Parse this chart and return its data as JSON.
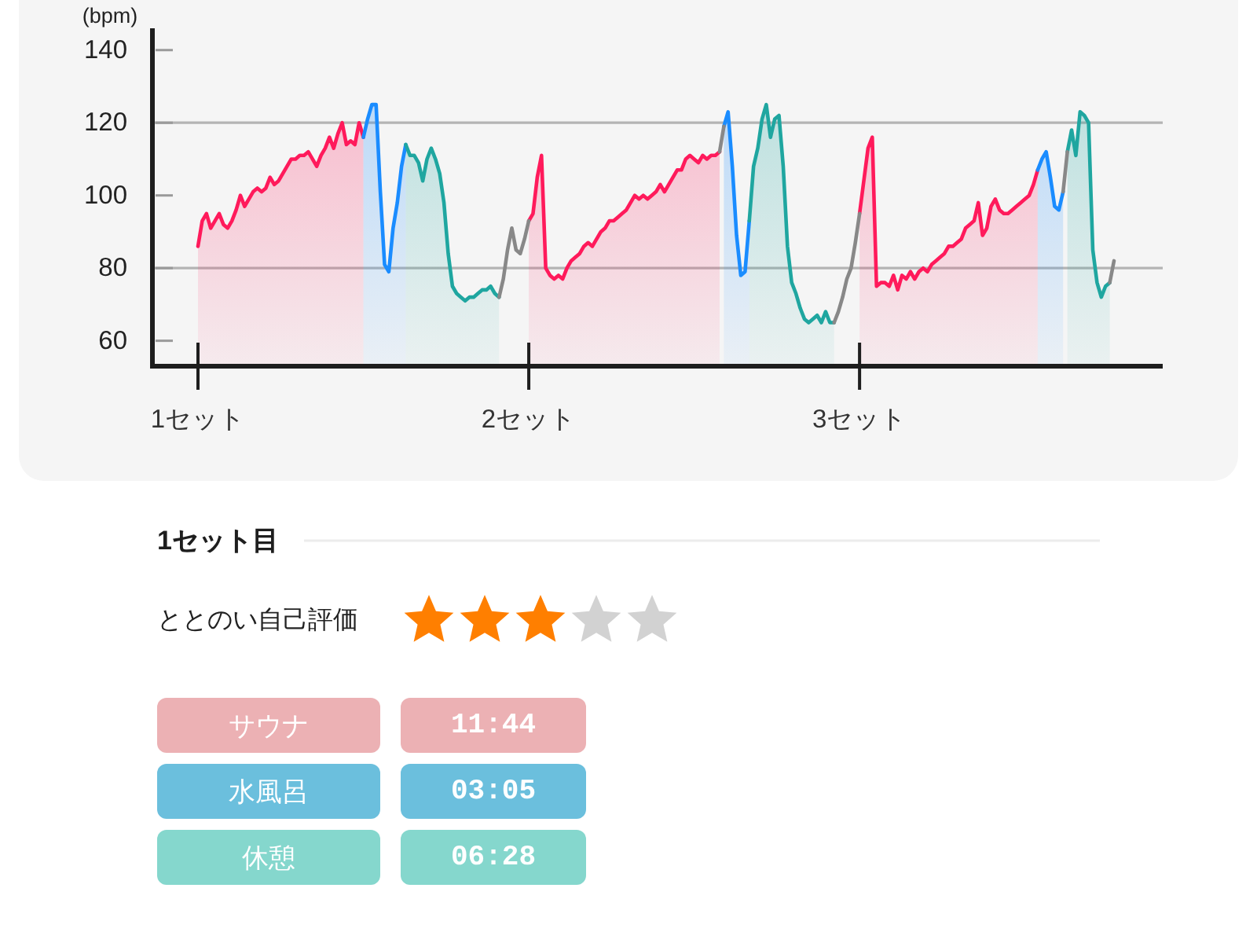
{
  "chart_data": [
    {
      "type": "area",
      "ylabel": "(bpm)",
      "ylim": [
        53,
        146
      ],
      "yticks": [
        60,
        80,
        100,
        120,
        140
      ],
      "categories": [
        "1セット",
        null,
        null,
        null,
        null,
        null,
        null,
        null,
        null,
        null,
        null,
        null,
        null,
        null,
        null,
        null,
        null,
        null,
        null,
        null,
        null,
        null,
        null,
        null,
        null,
        null,
        null,
        null,
        null,
        null,
        null,
        null,
        null,
        null,
        null,
        null,
        null,
        null,
        null,
        null,
        null,
        null,
        null,
        null,
        null,
        null,
        null,
        null,
        null,
        null,
        null,
        null,
        null,
        null,
        null,
        null,
        null,
        null,
        null,
        null,
        null,
        null,
        null,
        null,
        null,
        null,
        null,
        null,
        null,
        null,
        null,
        null,
        null,
        null,
        null,
        null,
        null,
        null,
        "2セット",
        null,
        null,
        null,
        null,
        null,
        null,
        null,
        null,
        null,
        null,
        null,
        null,
        null,
        null,
        null,
        null,
        null,
        null,
        null,
        null,
        null,
        null,
        null,
        null,
        null,
        null,
        null,
        null,
        null,
        null,
        null,
        null,
        null,
        null,
        null,
        null,
        null,
        null,
        null,
        null,
        null,
        null,
        null,
        null,
        null,
        null,
        null,
        null,
        null,
        null,
        null,
        null,
        null,
        null,
        null,
        null,
        null,
        null,
        null,
        null,
        null,
        null,
        null,
        null,
        null,
        null,
        null,
        null,
        null,
        null,
        null,
        null,
        null,
        null,
        null,
        null,
        null,
        "3セット",
        null,
        null,
        null,
        null,
        null,
        null,
        null,
        null,
        null,
        null,
        null,
        null,
        null,
        null,
        null,
        null,
        null,
        null,
        null,
        null,
        null,
        null,
        null,
        null,
        null,
        null,
        null,
        null,
        null,
        null,
        null,
        null,
        null,
        null,
        null,
        null,
        null,
        null,
        null,
        null,
        null,
        null,
        null,
        null,
        null,
        null,
        null,
        null,
        null,
        null,
        null,
        null,
        null,
        null,
        null,
        null,
        null,
        null,
        null,
        null
      ],
      "ref_lines": [
        {
          "axis": "y",
          "value": 80,
          "color": "#b4b4b4"
        },
        {
          "axis": "y",
          "value": 120,
          "color": "#b4b4b4"
        }
      ],
      "series": [
        {
          "type": "area",
          "color": "#ff1a5b",
          "values": [
            86,
            93,
            95,
            91,
            93,
            95,
            92,
            91,
            93,
            96,
            100,
            97,
            99,
            101,
            102,
            101,
            102,
            105,
            103,
            104,
            106,
            108,
            110,
            110,
            111,
            111,
            112,
            110,
            108,
            111,
            113,
            116,
            113,
            117,
            120,
            114,
            115,
            114,
            120,
            116,
            null,
            null,
            null,
            null,
            null,
            null,
            null,
            null,
            null,
            null,
            null,
            null,
            null,
            null,
            null,
            null,
            null,
            null,
            null,
            null,
            null,
            null,
            null,
            null,
            null,
            null,
            null,
            null,
            null,
            null,
            null,
            null,
            null,
            null,
            null,
            null,
            null,
            null,
            93,
            95,
            105,
            111,
            80,
            78,
            77,
            78,
            77,
            80,
            82,
            83,
            84,
            86,
            87,
            86,
            88,
            90,
            91,
            93,
            93,
            94,
            95,
            96,
            98,
            100,
            99,
            100,
            99,
            100,
            101,
            103,
            101,
            103,
            105,
            107,
            107,
            110,
            111,
            110,
            109,
            111,
            110,
            111,
            111,
            112,
            null,
            null,
            null,
            null,
            null,
            null,
            null,
            null,
            null,
            null,
            null,
            null,
            null,
            null,
            null,
            null,
            null,
            null,
            null,
            null,
            null,
            null,
            null,
            null,
            null,
            null,
            null,
            null,
            null,
            null,
            null,
            null,
            95,
            104,
            113,
            116,
            75,
            76,
            76,
            75,
            78,
            74,
            78,
            77,
            79,
            77,
            79,
            80,
            79,
            81,
            82,
            83,
            84,
            86,
            86,
            87,
            88,
            91,
            92,
            93,
            98,
            89,
            91,
            97,
            99,
            96,
            95,
            95,
            96,
            97,
            98,
            99,
            100,
            103,
            107,
            null,
            null,
            null,
            null,
            null,
            null,
            null,
            null,
            null,
            null,
            null,
            null,
            null,
            null,
            null,
            null,
            null,
            null
          ]
        },
        {
          "type": "area",
          "color": "#1a8cff",
          "values": [
            null,
            null,
            null,
            null,
            null,
            null,
            null,
            null,
            null,
            null,
            null,
            null,
            null,
            null,
            null,
            null,
            null,
            null,
            null,
            null,
            null,
            null,
            null,
            null,
            null,
            null,
            null,
            null,
            null,
            null,
            null,
            null,
            null,
            null,
            null,
            null,
            null,
            null,
            null,
            116,
            121,
            125,
            125,
            101,
            81,
            79,
            91,
            98,
            108,
            114,
            null,
            null,
            null,
            null,
            null,
            null,
            null,
            null,
            null,
            null,
            null,
            null,
            null,
            null,
            null,
            null,
            null,
            null,
            null,
            null,
            null,
            null,
            null,
            null,
            null,
            null,
            null,
            null,
            null,
            null,
            null,
            null,
            null,
            null,
            null,
            null,
            null,
            null,
            null,
            null,
            null,
            null,
            null,
            null,
            null,
            null,
            null,
            null,
            null,
            null,
            null,
            null,
            null,
            null,
            null,
            null,
            null,
            null,
            null,
            null,
            null,
            null,
            null,
            null,
            null,
            null,
            null,
            null,
            null,
            null,
            null,
            null,
            null,
            null,
            119,
            123,
            108,
            89,
            78,
            79,
            93,
            null,
            null,
            null,
            null,
            null,
            null,
            null,
            null,
            null,
            null,
            null,
            null,
            null,
            null,
            null,
            null,
            null,
            null,
            null,
            null,
            null,
            null,
            null,
            null,
            null,
            null,
            null,
            null,
            null,
            null,
            null,
            null,
            null,
            null,
            null,
            null,
            null,
            null,
            null,
            null,
            null,
            null,
            null,
            null,
            null,
            null,
            null,
            null,
            null,
            null,
            null,
            null,
            null,
            null,
            null,
            null,
            null,
            null,
            null,
            null,
            null,
            null,
            null,
            null,
            null,
            null,
            null,
            107,
            110,
            112,
            105,
            97,
            96,
            101,
            null,
            null,
            null,
            null,
            null,
            null,
            null,
            null,
            null,
            null,
            null,
            null
          ]
        },
        {
          "type": "area",
          "color": "#1fa6a0",
          "values": [
            null,
            null,
            null,
            null,
            null,
            null,
            null,
            null,
            null,
            null,
            null,
            null,
            null,
            null,
            null,
            null,
            null,
            null,
            null,
            null,
            null,
            null,
            null,
            null,
            null,
            null,
            null,
            null,
            null,
            null,
            null,
            null,
            null,
            null,
            null,
            null,
            null,
            null,
            null,
            null,
            null,
            null,
            null,
            null,
            null,
            null,
            null,
            null,
            null,
            114,
            111,
            111,
            109,
            104,
            110,
            113,
            110,
            106,
            98,
            84,
            75,
            73,
            72,
            71,
            72,
            72,
            73,
            74,
            74,
            75,
            73,
            72,
            null,
            null,
            null,
            null,
            null,
            null,
            null,
            null,
            null,
            null,
            null,
            null,
            null,
            null,
            null,
            null,
            null,
            null,
            null,
            null,
            null,
            null,
            null,
            null,
            null,
            null,
            null,
            null,
            null,
            null,
            null,
            null,
            null,
            null,
            null,
            null,
            null,
            null,
            null,
            null,
            null,
            null,
            null,
            null,
            null,
            null,
            null,
            null,
            null,
            null,
            null,
            null,
            null,
            null,
            null,
            null,
            null,
            null,
            93,
            108,
            113,
            121,
            125,
            116,
            121,
            122,
            108,
            86,
            76,
            73,
            69,
            66,
            65,
            66,
            67,
            65,
            68,
            65,
            65,
            null,
            null,
            null,
            null,
            null,
            null,
            null,
            null,
            null,
            null,
            null,
            null,
            null,
            null,
            null,
            null,
            null,
            null,
            null,
            null,
            null,
            null,
            null,
            null,
            null,
            null,
            null,
            null,
            null,
            null,
            null,
            null,
            null,
            null,
            null,
            null,
            null,
            null,
            null,
            null,
            null,
            null,
            null,
            null,
            null,
            null,
            null,
            null,
            null,
            null,
            null,
            null,
            null,
            null,
            112,
            118,
            111,
            123,
            122,
            120,
            85,
            76,
            72,
            75,
            76,
            null
          ]
        },
        {
          "type": "line",
          "color": "#888888",
          "values": [
            null,
            null,
            null,
            null,
            null,
            null,
            null,
            null,
            null,
            null,
            null,
            null,
            null,
            null,
            null,
            null,
            null,
            null,
            null,
            null,
            null,
            null,
            null,
            null,
            null,
            null,
            null,
            null,
            null,
            null,
            null,
            null,
            null,
            null,
            null,
            null,
            null,
            null,
            null,
            null,
            null,
            null,
            null,
            null,
            null,
            null,
            null,
            null,
            null,
            null,
            null,
            null,
            null,
            null,
            null,
            null,
            null,
            null,
            null,
            null,
            null,
            null,
            null,
            null,
            null,
            null,
            null,
            null,
            null,
            null,
            null,
            72,
            77,
            85,
            91,
            85,
            84,
            88,
            93,
            null,
            null,
            null,
            null,
            null,
            null,
            null,
            null,
            null,
            null,
            null,
            null,
            null,
            null,
            null,
            null,
            null,
            null,
            null,
            null,
            null,
            null,
            null,
            null,
            null,
            null,
            null,
            null,
            null,
            null,
            null,
            null,
            null,
            null,
            null,
            null,
            null,
            null,
            null,
            null,
            null,
            null,
            null,
            null,
            112,
            119,
            null,
            null,
            null,
            null,
            null,
            null,
            null,
            null,
            null,
            null,
            null,
            null,
            null,
            null,
            null,
            null,
            null,
            null,
            null,
            null,
            null,
            null,
            null,
            null,
            null,
            65,
            68,
            72,
            77,
            80,
            87,
            95,
            null,
            null,
            null,
            null,
            null,
            null,
            null,
            null,
            null,
            null,
            null,
            null,
            null,
            null,
            null,
            null,
            null,
            null,
            null,
            null,
            null,
            null,
            null,
            null,
            null,
            null,
            null,
            null,
            null,
            null,
            null,
            null,
            null,
            null,
            null,
            null,
            null,
            null,
            null,
            null,
            null,
            null,
            null,
            null,
            null,
            null,
            null,
            101,
            112,
            null,
            null,
            null,
            null,
            null,
            null,
            null,
            null,
            null,
            76,
            82
          ]
        }
      ]
    },
    {
      "type": "other",
      "title": "1セット目",
      "annotations": [
        "ととのい自己評価"
      ],
      "colors": [
        "#ff7f00",
        "#ff7f00",
        "#ff7f00",
        "#d2d2d2",
        "#d2d2d2"
      ]
    },
    {
      "type": "other",
      "annotations": [
        "サウナ",
        "11:44",
        "水風呂",
        "03:05",
        "休憩",
        "06:28"
      ],
      "colors": [
        "#ecb1b4",
        "#ecb1b4",
        "#6bbfdd",
        "#6bbfdd",
        "#85d7cd",
        "#85d7cd"
      ]
    }
  ]
}
